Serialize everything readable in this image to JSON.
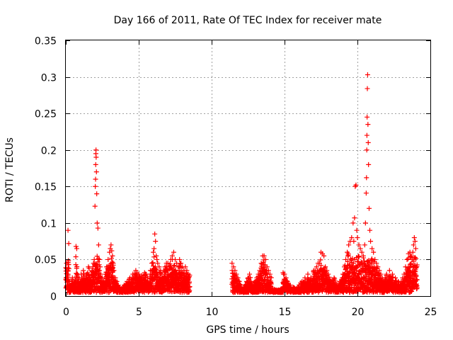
{
  "chart_data": {
    "type": "scatter",
    "title": "Day 166 of 2011, Rate Of TEC Index for receiver mate",
    "xlabel": "GPS time / hours",
    "ylabel": "ROTI / TECUs",
    "xlim": [
      0,
      25
    ],
    "ylim": [
      0,
      0.35
    ],
    "x_ticks": [
      0,
      5,
      10,
      15,
      20,
      25
    ],
    "x_tick_labels": [
      "0",
      "5",
      "10",
      "15",
      "20",
      "25"
    ],
    "y_ticks": [
      0,
      0.05,
      0.1,
      0.15,
      0.2,
      0.25,
      0.3,
      0.35
    ],
    "y_tick_labels": [
      "0",
      "0.05",
      "0.1",
      "0.15",
      "0.2",
      "0.25",
      "0.3",
      "0.35"
    ],
    "grid": true,
    "marker": "+",
    "series": [
      {
        "name": "ROTI",
        "color": "#ff0000",
        "x": [
          0.05,
          0.1,
          0.15,
          0.2,
          0.25,
          0.3,
          0.35,
          0.4,
          0.45,
          0.5,
          0.55,
          0.6,
          0.65,
          0.7,
          0.75,
          0.8,
          0.85,
          0.9,
          0.95,
          1.0,
          1.05,
          1.1,
          1.15,
          1.2,
          1.25,
          1.3,
          1.35,
          1.4,
          1.45,
          1.5,
          1.55,
          1.6,
          1.65,
          1.7,
          1.75,
          1.8,
          1.85,
          1.9,
          1.95,
          2.0,
          2.02,
          2.04,
          2.05,
          2.06,
          2.07,
          2.08,
          2.1,
          2.12,
          2.15,
          2.2,
          2.25,
          2.3,
          2.35,
          2.4,
          2.5,
          2.6,
          2.7,
          2.8,
          2.9,
          3.0,
          3.05,
          3.1,
          3.15,
          3.2,
          3.25,
          3.3,
          3.4,
          3.5,
          3.6,
          3.7,
          3.8,
          3.9,
          4.0,
          4.2,
          4.4,
          4.6,
          4.8,
          5.0,
          5.2,
          5.4,
          5.6,
          5.8,
          5.9,
          6.0,
          6.05,
          6.1,
          6.15,
          6.2,
          6.25,
          6.3,
          6.4,
          6.5,
          6.6,
          6.7,
          6.8,
          6.9,
          7.0,
          7.1,
          7.2,
          7.3,
          7.4,
          7.5,
          7.6,
          7.7,
          7.8,
          7.9,
          8.0,
          8.1,
          8.2,
          8.3,
          8.4,
          11.4,
          11.5,
          11.6,
          11.7,
          11.8,
          11.9,
          12.0,
          12.1,
          12.2,
          12.3,
          12.4,
          12.5,
          12.6,
          12.7,
          12.8,
          12.9,
          13.0,
          13.1,
          13.2,
          13.3,
          13.4,
          13.5,
          13.6,
          13.7,
          13.8,
          13.9,
          14.0,
          14.2,
          14.4,
          14.6,
          14.8,
          14.9,
          15.0,
          15.1,
          15.2,
          15.4,
          15.6,
          15.8,
          16.0,
          16.2,
          16.4,
          16.6,
          16.8,
          17.0,
          17.1,
          17.2,
          17.3,
          17.4,
          17.5,
          17.6,
          17.7,
          17.8,
          17.9,
          18.0,
          18.2,
          18.4,
          18.6,
          18.8,
          19.0,
          19.1,
          19.2,
          19.3,
          19.4,
          19.5,
          19.6,
          19.7,
          19.75,
          19.8,
          19.85,
          19.9,
          19.95,
          20.0,
          20.1,
          20.2,
          20.3,
          20.4,
          20.5,
          20.55,
          20.6,
          20.62,
          20.64,
          20.65,
          20.66,
          20.68,
          20.7,
          20.72,
          20.74,
          20.76,
          20.8,
          20.85,
          20.9,
          21.0,
          21.1,
          21.2,
          21.3,
          21.4,
          21.5,
          21.6,
          21.7,
          21.8,
          21.9,
          22.0,
          22.2,
          22.4,
          22.6,
          22.8,
          23.0,
          23.1,
          23.2,
          23.3,
          23.4,
          23.5,
          23.6,
          23.7,
          23.75,
          23.8,
          23.85,
          23.9,
          23.95,
          24.0
        ],
        "y": [
          0.045,
          0.03,
          0.09,
          0.072,
          0.02,
          0.01,
          0.015,
          0.02,
          0.025,
          0.015,
          0.02,
          0.018,
          0.022,
          0.068,
          0.065,
          0.03,
          0.02,
          0.025,
          0.018,
          0.02,
          0.03,
          0.025,
          0.02,
          0.035,
          0.03,
          0.025,
          0.02,
          0.028,
          0.03,
          0.032,
          0.04,
          0.038,
          0.02,
          0.025,
          0.03,
          0.035,
          0.04,
          0.045,
          0.05,
          0.123,
          0.15,
          0.16,
          0.18,
          0.195,
          0.2,
          0.19,
          0.17,
          0.14,
          0.1,
          0.093,
          0.07,
          0.05,
          0.04,
          0.03,
          0.025,
          0.02,
          0.03,
          0.04,
          0.05,
          0.06,
          0.065,
          0.07,
          0.062,
          0.055,
          0.045,
          0.035,
          0.025,
          0.02,
          0.015,
          0.012,
          0.01,
          0.012,
          0.015,
          0.02,
          0.025,
          0.03,
          0.035,
          0.03,
          0.028,
          0.032,
          0.025,
          0.035,
          0.045,
          0.06,
          0.065,
          0.085,
          0.075,
          0.055,
          0.05,
          0.045,
          0.04,
          0.035,
          0.03,
          0.035,
          0.04,
          0.045,
          0.045,
          0.04,
          0.05,
          0.055,
          0.06,
          0.05,
          0.045,
          0.04,
          0.05,
          0.045,
          0.04,
          0.035,
          0.04,
          0.035,
          0.03,
          0.045,
          0.04,
          0.035,
          0.03,
          0.025,
          0.02,
          0.015,
          0.01,
          0.012,
          0.015,
          0.02,
          0.025,
          0.03,
          0.02,
          0.015,
          0.018,
          0.02,
          0.025,
          0.03,
          0.035,
          0.045,
          0.055,
          0.055,
          0.05,
          0.04,
          0.035,
          0.03,
          0.01,
          0.008,
          0.008,
          0.01,
          0.032,
          0.03,
          0.025,
          0.02,
          0.015,
          0.012,
          0.01,
          0.015,
          0.02,
          0.025,
          0.03,
          0.025,
          0.035,
          0.035,
          0.04,
          0.045,
          0.045,
          0.06,
          0.058,
          0.055,
          0.04,
          0.035,
          0.03,
          0.02,
          0.025,
          0.015,
          0.02,
          0.03,
          0.04,
          0.05,
          0.06,
          0.07,
          0.075,
          0.08,
          0.1,
          0.075,
          0.107,
          0.15,
          0.152,
          0.09,
          0.08,
          0.07,
          0.065,
          0.06,
          0.055,
          0.07,
          0.1,
          0.141,
          0.162,
          0.2,
          0.22,
          0.245,
          0.284,
          0.303,
          0.235,
          0.21,
          0.18,
          0.12,
          0.09,
          0.075,
          0.065,
          0.06,
          0.05,
          0.045,
          0.04,
          0.035,
          0.03,
          0.025,
          0.02,
          0.025,
          0.03,
          0.035,
          0.03,
          0.025,
          0.02,
          0.02,
          0.025,
          0.03,
          0.04,
          0.05,
          0.058,
          0.06,
          0.055,
          0.05,
          0.06,
          0.07,
          0.08,
          0.075,
          0.065
        ],
        "x_dense_ranges": [
          [
            0.0,
            8.5
          ],
          [
            11.4,
            24.1
          ]
        ],
        "y_dense_floor": 0.005
      }
    ]
  }
}
